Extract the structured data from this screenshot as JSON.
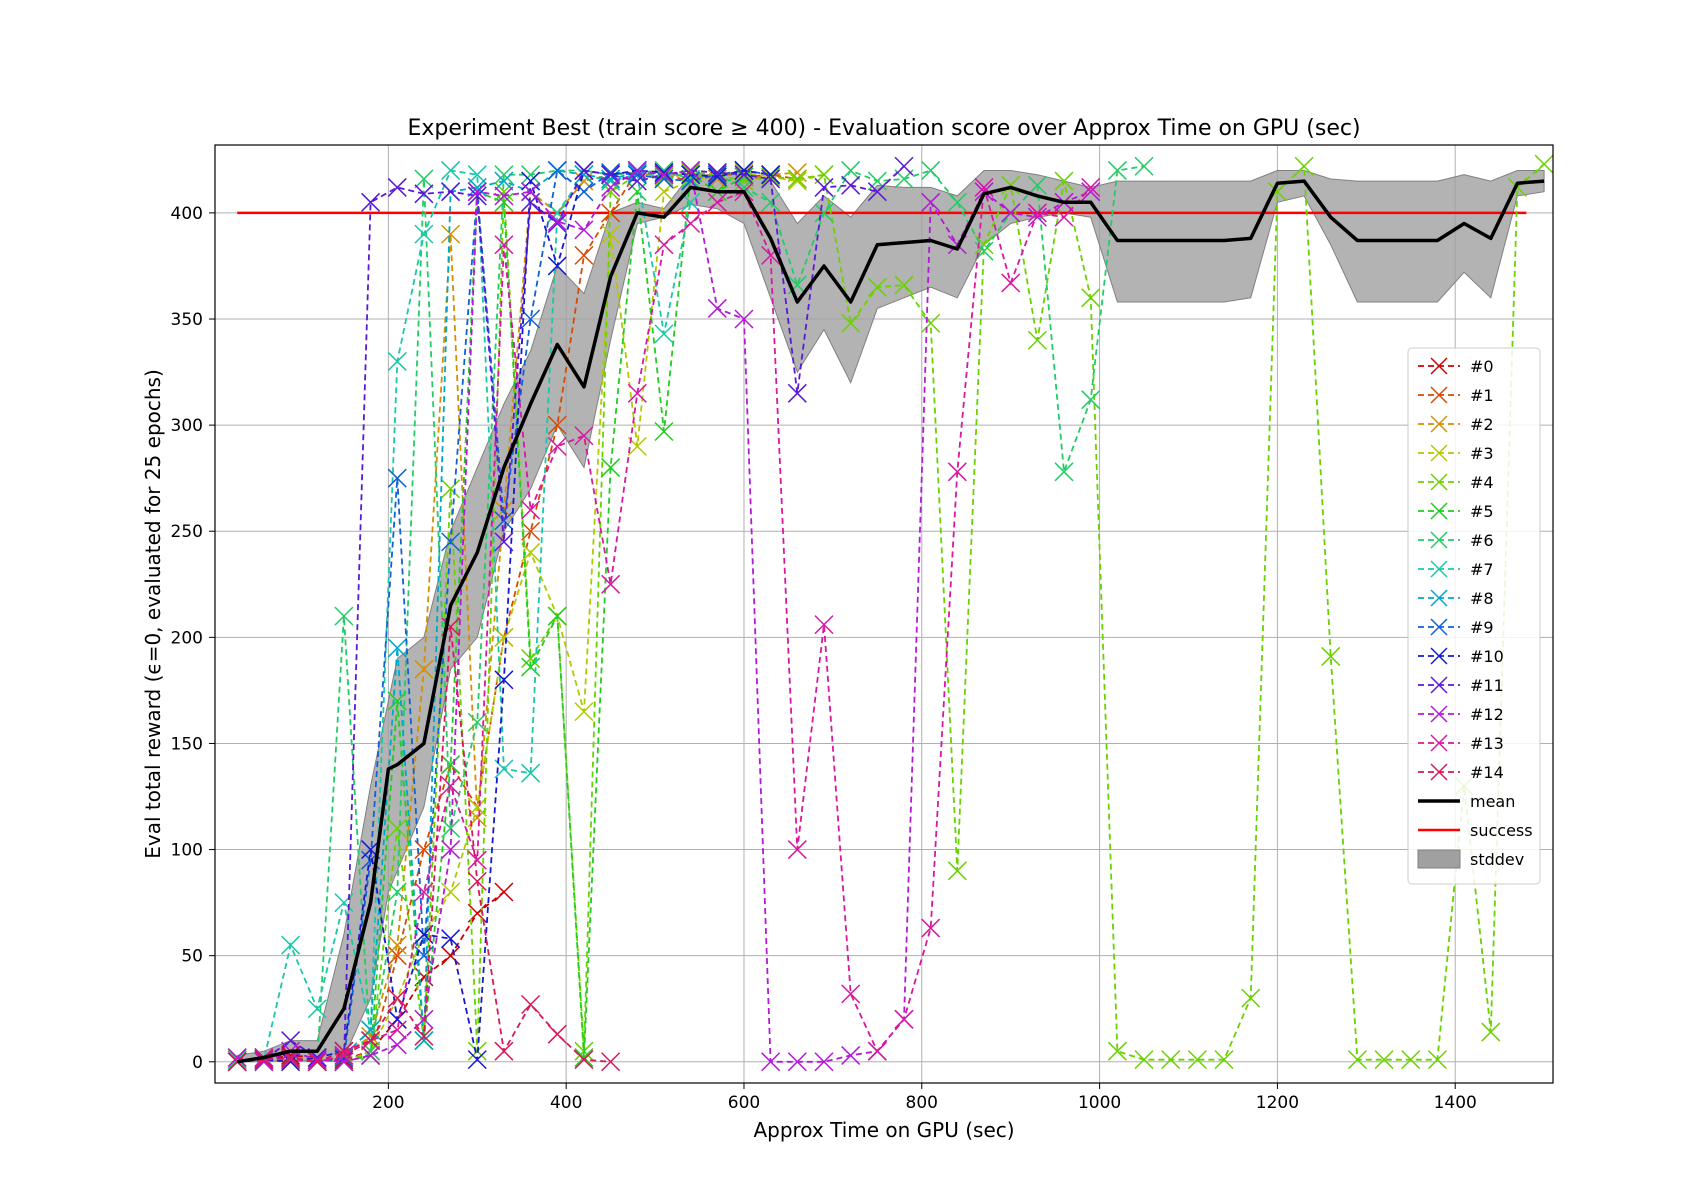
{
  "chart_data": {
    "type": "line",
    "title": "Experiment Best (train score ≥ 400) - Evaluation score over Approx Time on GPU (sec)",
    "xlabel": "Approx Time on GPU (sec)",
    "ylabel": "Eval total reward (ϵ=0, evaluated for 25 epochs)",
    "xlim": [
      5,
      1510
    ],
    "ylim": [
      -10,
      432
    ],
    "xticks": [
      200,
      400,
      600,
      800,
      1000,
      1200,
      1400
    ],
    "yticks": [
      0,
      50,
      100,
      150,
      200,
      250,
      300,
      350,
      400
    ],
    "grid": true,
    "legend_position": "center-right",
    "success_threshold": 400,
    "success_xrange": [
      30,
      1480
    ],
    "series": [
      {
        "name": "#0",
        "color": "#cc0000",
        "x": [
          30,
          60,
          90,
          120,
          150,
          180,
          210,
          240,
          270,
          300,
          330
        ],
        "y": [
          0,
          1,
          3,
          2,
          1,
          5,
          20,
          40,
          50,
          70,
          80
        ]
      },
      {
        "name": "#1",
        "color": "#d84a00",
        "x": [
          30,
          60,
          90,
          120,
          150,
          180,
          210,
          240,
          270,
          300,
          330,
          360,
          390,
          420,
          450,
          480,
          510,
          540,
          570,
          600,
          630,
          660
        ],
        "y": [
          1,
          0,
          2,
          1,
          0,
          3,
          50,
          100,
          140,
          120,
          200,
          250,
          300,
          380,
          400,
          420,
          418,
          415,
          419,
          417,
          418,
          416
        ]
      },
      {
        "name": "#2",
        "color": "#d49000",
        "x": [
          30,
          60,
          90,
          120,
          150,
          180,
          210,
          240,
          270,
          300,
          330,
          360,
          390,
          420,
          450,
          480,
          510,
          540,
          570,
          600,
          630,
          660
        ],
        "y": [
          0,
          2,
          1,
          0,
          3,
          12,
          55,
          185,
          390,
          115,
          260,
          410,
          400,
          415,
          418,
          419,
          417,
          418,
          416,
          415,
          418,
          419
        ]
      },
      {
        "name": "#3",
        "color": "#b4c800",
        "x": [
          30,
          60,
          90,
          120,
          150,
          180,
          210,
          240,
          270,
          300,
          330,
          360,
          390,
          420,
          450,
          480,
          510,
          540,
          570,
          600,
          630,
          660,
          690
        ],
        "y": [
          2,
          0,
          1,
          2,
          0,
          5,
          30,
          60,
          80,
          120,
          200,
          240,
          210,
          165,
          390,
          290,
          410,
          415,
          418,
          419,
          417,
          415,
          418
        ]
      },
      {
        "name": "#4",
        "color": "#6ad200",
        "x": [
          30,
          60,
          90,
          120,
          150,
          180,
          210,
          240,
          270,
          300,
          330,
          360,
          390,
          420,
          450,
          480,
          510,
          540,
          570,
          600,
          630,
          660,
          690,
          720,
          750,
          780,
          810,
          840,
          870,
          900,
          930,
          960,
          990,
          1020,
          1050,
          1080,
          1110,
          1140,
          1170,
          1200,
          1230,
          1260,
          1290,
          1320,
          1350,
          1380,
          1410,
          1440,
          1470,
          1500
        ],
        "y": [
          0,
          2,
          1,
          0,
          2,
          3,
          110,
          10,
          270,
          5,
          410,
          190,
          210,
          5,
          410,
          418,
          417,
          419,
          418,
          415,
          417,
          416,
          418,
          348,
          365,
          366,
          348,
          90,
          385,
          413,
          340,
          415,
          360,
          5,
          1,
          1,
          1,
          1,
          30,
          410,
          422,
          191,
          1,
          1,
          1,
          1,
          130,
          14,
          412,
          423
        ]
      },
      {
        "name": "#5",
        "color": "#22cc22",
        "x": [
          30,
          60,
          90,
          120,
          150,
          180,
          210,
          240,
          270,
          300,
          330,
          360,
          390,
          420,
          450,
          480,
          510,
          540,
          570,
          600
        ],
        "y": [
          1,
          0,
          2,
          1,
          0,
          3,
          170,
          10,
          140,
          410,
          405,
          186,
          210,
          2,
          280,
          410,
          297,
          418,
          410,
          417
        ]
      },
      {
        "name": "#6",
        "color": "#22cc66",
        "x": [
          30,
          60,
          90,
          120,
          150,
          180,
          210,
          240,
          270,
          300,
          330,
          360,
          390,
          420,
          450,
          480,
          510,
          540,
          570,
          600,
          630,
          660,
          690,
          720,
          750,
          780,
          810,
          840,
          870,
          900,
          930,
          960,
          990,
          1020,
          1050
        ],
        "y": [
          1,
          0,
          1,
          0,
          210,
          5,
          80,
          416,
          110,
          160,
          418,
          418,
          420,
          420,
          418,
          419,
          420,
          416,
          418,
          412,
          405,
          366,
          400,
          420,
          415,
          416,
          420,
          405,
          382,
          400,
          413,
          278,
          312,
          420,
          422
        ]
      },
      {
        "name": "#7",
        "color": "#18c8a8",
        "x": [
          30,
          60,
          90,
          120,
          150,
          180,
          210,
          240,
          270,
          300,
          330,
          360,
          390,
          420,
          450,
          480,
          510,
          540
        ],
        "y": [
          0,
          1,
          55,
          25,
          75,
          15,
          330,
          390,
          420,
          418,
          138,
          136,
          400,
          418,
          415,
          418,
          343,
          405
        ]
      },
      {
        "name": "#8",
        "color": "#00a8c8",
        "x": [
          30,
          60,
          90,
          120,
          150,
          180,
          210,
          240,
          270,
          300,
          330,
          360,
          390,
          420,
          450,
          480,
          510
        ],
        "y": [
          0,
          2,
          1,
          0,
          3,
          15,
          195,
          10,
          410,
          412,
          415,
          410,
          420,
          418,
          416,
          419,
          418
        ]
      },
      {
        "name": "#9",
        "color": "#1060d8",
        "x": [
          30,
          60,
          90,
          120,
          150,
          180,
          210,
          240,
          270,
          300,
          330,
          360,
          390,
          420,
          450,
          480,
          510,
          540,
          570,
          600,
          630
        ],
        "y": [
          0,
          1,
          2,
          0,
          2,
          95,
          275,
          50,
          245,
          410,
          255,
          350,
          420,
          410,
          419,
          418,
          416,
          415,
          418,
          420,
          418
        ]
      },
      {
        "name": "#10",
        "color": "#1818d0",
        "x": [
          30,
          60,
          90,
          120,
          150,
          180,
          210,
          240,
          270,
          300,
          330,
          360,
          390,
          420,
          450,
          480,
          510,
          540,
          570,
          600,
          630
        ],
        "y": [
          0,
          1,
          0,
          2,
          5,
          100,
          20,
          60,
          58,
          1,
          180,
          415,
          375,
          420,
          418,
          420,
          419,
          418,
          417,
          420,
          418
        ]
      },
      {
        "name": "#11",
        "color": "#5a18d8",
        "x": [
          30,
          60,
          90,
          120,
          150,
          180,
          210,
          240,
          270,
          300,
          330,
          360,
          390,
          420,
          450,
          480,
          510,
          540,
          570,
          600,
          630,
          660,
          690,
          720,
          750,
          780
        ],
        "y": [
          0,
          1,
          10,
          2,
          0,
          405,
          412,
          409,
          410,
          408,
          245,
          405,
          395,
          420,
          418,
          415,
          418,
          420,
          419,
          418,
          416,
          315,
          412,
          413,
          410,
          422
        ]
      },
      {
        "name": "#12",
        "color": "#b418d8",
        "x": [
          30,
          60,
          90,
          120,
          150,
          180,
          210,
          240,
          270,
          300,
          330,
          360,
          390,
          420,
          450,
          480,
          510,
          540,
          570,
          600,
          630,
          660,
          690,
          720,
          750,
          780,
          810,
          840,
          870,
          900,
          930,
          960,
          990
        ],
        "y": [
          2,
          0,
          5,
          1,
          0,
          3,
          8,
          20,
          100,
          410,
          408,
          410,
          396,
          392,
          412,
          420,
          418,
          420,
          355,
          350,
          0,
          0,
          0,
          3,
          5,
          20,
          405,
          385,
          410,
          400,
          398,
          405,
          410
        ]
      },
      {
        "name": "#13",
        "color": "#d818a0",
        "x": [
          30,
          60,
          90,
          120,
          150,
          180,
          210,
          240,
          270,
          300,
          330,
          360,
          390,
          420,
          450,
          480,
          510,
          540,
          570,
          600,
          630,
          660,
          690,
          720,
          750,
          780,
          810,
          840,
          870,
          900,
          930,
          960,
          990
        ],
        "y": [
          0,
          2,
          1,
          0,
          3,
          10,
          15,
          80,
          130,
          95,
          385,
          260,
          290,
          295,
          225,
          315,
          385,
          395,
          405,
          410,
          380,
          100,
          206,
          32,
          5,
          20,
          63,
          278,
          412,
          367,
          400,
          398,
          412
        ]
      },
      {
        "name": "#14",
        "color": "#d8185a",
        "x": [
          30,
          60,
          90,
          120,
          150,
          180,
          210,
          240,
          270,
          300,
          330,
          360,
          390,
          420,
          450
        ],
        "y": [
          0,
          1,
          2,
          0,
          5,
          10,
          30,
          12,
          205,
          85,
          5,
          27,
          13,
          1,
          0
        ]
      }
    ],
    "mean": {
      "name": "mean",
      "color": "#000000",
      "x": [
        30,
        60,
        90,
        120,
        150,
        180,
        200,
        210,
        240,
        270,
        300,
        330,
        360,
        390,
        420,
        450,
        480,
        510,
        540,
        570,
        600,
        630,
        660,
        690,
        720,
        750,
        780,
        810,
        840,
        870,
        900,
        930,
        960,
        990,
        1020,
        1050,
        1080,
        1110,
        1140,
        1170,
        1200,
        1230,
        1260,
        1290,
        1320,
        1350,
        1380,
        1410,
        1440,
        1470,
        1500
      ],
      "y": [
        0,
        2,
        5,
        5,
        25,
        75,
        138,
        140,
        150,
        215,
        240,
        280,
        310,
        338,
        318,
        370,
        400,
        398,
        412,
        410,
        410,
        388,
        358,
        375,
        358,
        385,
        386,
        387,
        383,
        409,
        412,
        408,
        405,
        405,
        387,
        387,
        387,
        387,
        387,
        388,
        414,
        415,
        398,
        387,
        387,
        387,
        387,
        395,
        388,
        414,
        415
      ],
      "std_low": [
        0,
        0,
        1,
        0,
        2,
        30,
        80,
        90,
        120,
        185,
        200,
        250,
        270,
        300,
        280,
        340,
        395,
        398,
        404,
        402,
        395,
        360,
        325,
        345,
        320,
        355,
        360,
        365,
        360,
        385,
        395,
        398,
        400,
        398,
        358,
        358,
        358,
        358,
        358,
        360,
        405,
        408,
        385,
        358,
        358,
        358,
        358,
        372,
        360,
        408,
        410
      ],
      "std_high": [
        3,
        5,
        10,
        10,
        60,
        130,
        170,
        190,
        200,
        250,
        280,
        310,
        335,
        375,
        362,
        400,
        405,
        402,
        418,
        418,
        420,
        415,
        395,
        408,
        398,
        413,
        412,
        412,
        408,
        420,
        420,
        418,
        415,
        412,
        415,
        415,
        415,
        415,
        415,
        415,
        420,
        420,
        416,
        415,
        415,
        415,
        415,
        418,
        415,
        420,
        420
      ]
    },
    "legend": [
      {
        "label": "#0",
        "kind": "series",
        "color": "#cc0000"
      },
      {
        "label": "#1",
        "kind": "series",
        "color": "#d84a00"
      },
      {
        "label": "#2",
        "kind": "series",
        "color": "#d49000"
      },
      {
        "label": "#3",
        "kind": "series",
        "color": "#b4c800"
      },
      {
        "label": "#4",
        "kind": "series",
        "color": "#6ad200"
      },
      {
        "label": "#5",
        "kind": "series",
        "color": "#22cc22"
      },
      {
        "label": "#6",
        "kind": "series",
        "color": "#22cc66"
      },
      {
        "label": "#7",
        "kind": "series",
        "color": "#18c8a8"
      },
      {
        "label": "#8",
        "kind": "series",
        "color": "#00a8c8"
      },
      {
        "label": "#9",
        "kind": "series",
        "color": "#1060d8"
      },
      {
        "label": "#10",
        "kind": "series",
        "color": "#1818d0"
      },
      {
        "label": "#11",
        "kind": "series",
        "color": "#5a18d8"
      },
      {
        "label": "#12",
        "kind": "series",
        "color": "#b418d8"
      },
      {
        "label": "#13",
        "kind": "series",
        "color": "#d818a0"
      },
      {
        "label": "#14",
        "kind": "series",
        "color": "#d8185a"
      },
      {
        "label": "mean",
        "kind": "mean",
        "color": "#000000"
      },
      {
        "label": "success",
        "kind": "success",
        "color": "#ff0000"
      },
      {
        "label": "stddev",
        "kind": "stddev",
        "color": "#b0b0b0"
      }
    ]
  }
}
